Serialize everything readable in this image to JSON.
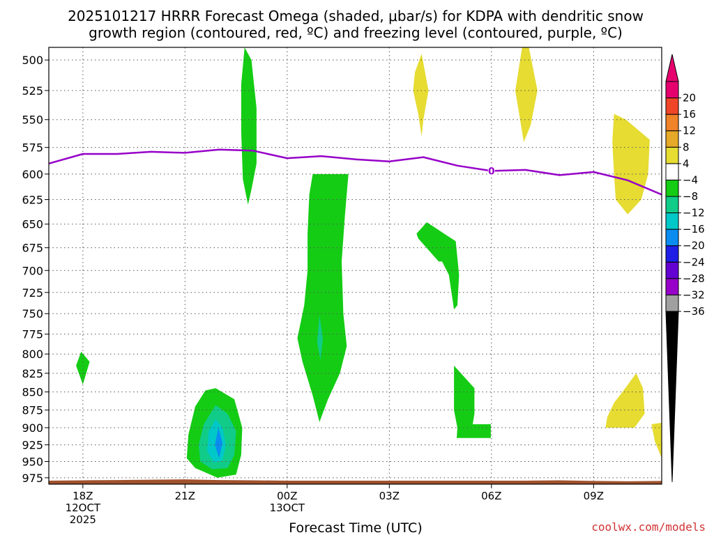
{
  "chart_data": {
    "type": "heatmap",
    "title_lines": [
      "2025101217 HRRR Forecast Omega (shaded, μbar/s) for KDPA with dendritic snow",
      "growth region (contoured, red, ºC) and freezing level (contoured, purple, ºC)"
    ],
    "xlabel": "Forecast Time (UTC)",
    "x_ticks": [
      {
        "hour": 0,
        "lines": [
          "18Z",
          "12OCT",
          "2025"
        ]
      },
      {
        "hour": 3,
        "lines": [
          "21Z"
        ]
      },
      {
        "hour": 6,
        "lines": [
          "00Z",
          "13OCT"
        ]
      },
      {
        "hour": 9,
        "lines": [
          "03Z"
        ]
      },
      {
        "hour": 12,
        "lines": [
          "06Z"
        ]
      },
      {
        "hour": 15,
        "lines": [
          "09Z"
        ]
      }
    ],
    "xlim": [
      -1,
      17
    ],
    "yaxis": "pressure (mb), log scale, inverted",
    "ylim": [
      985,
      490
    ],
    "y_ticks": [
      500,
      525,
      550,
      575,
      600,
      625,
      650,
      675,
      700,
      725,
      750,
      775,
      800,
      825,
      850,
      875,
      900,
      925,
      950,
      975
    ],
    "colorbar": {
      "levels": [
        -36,
        -32,
        -28,
        -24,
        -20,
        -16,
        -12,
        -8,
        -4,
        4,
        8,
        12,
        16,
        20
      ],
      "colors": [
        "#a0a0a0",
        "#9600c8",
        "#6400d2",
        "#1e1ee6",
        "#0a8cf0",
        "#00c8c8",
        "#10cc88",
        "#14cc14",
        "#ffffff",
        "#e6dc32",
        "#e6aa28",
        "#f08228",
        "#f04628",
        "#e6006e"
      ],
      "under_color": "#000000",
      "over_color": "#e6006e"
    },
    "omega_regions": [
      {
        "id": "r1",
        "color": "#14cc14",
        "points": [
          [
            4.75,
            490
          ],
          [
            4.95,
            500
          ],
          [
            5.1,
            540
          ],
          [
            5.1,
            590
          ],
          [
            4.95,
            615
          ],
          [
            4.85,
            630
          ],
          [
            4.7,
            605
          ],
          [
            4.65,
            560
          ],
          [
            4.65,
            520
          ]
        ]
      },
      {
        "id": "r2",
        "color": "#14cc14",
        "points": [
          [
            6.75,
            600
          ],
          [
            7.8,
            600
          ],
          [
            7.7,
            640
          ],
          [
            7.6,
            690
          ],
          [
            7.65,
            750
          ],
          [
            7.75,
            790
          ],
          [
            7.55,
            825
          ],
          [
            7.2,
            860
          ],
          [
            6.95,
            892
          ],
          [
            6.75,
            855
          ],
          [
            6.45,
            810
          ],
          [
            6.3,
            780
          ],
          [
            6.5,
            740
          ],
          [
            6.6,
            700
          ],
          [
            6.6,
            660
          ],
          [
            6.65,
            620
          ]
        ]
      },
      {
        "id": "r3",
        "color": "#10cc88",
        "points": [
          [
            6.95,
            752
          ],
          [
            7.05,
            780
          ],
          [
            6.98,
            808
          ],
          [
            6.88,
            785
          ]
        ]
      },
      {
        "id": "r4",
        "color": "#14cc14",
        "points": [
          [
            9.8,
            660
          ],
          [
            10.1,
            648
          ],
          [
            10.95,
            668
          ],
          [
            11.05,
            705
          ],
          [
            11.0,
            740
          ],
          [
            10.9,
            745
          ],
          [
            10.75,
            705
          ],
          [
            10.55,
            690
          ],
          [
            10.45,
            690
          ],
          [
            9.85,
            665
          ]
        ]
      },
      {
        "id": "r5",
        "color": "#14cc14",
        "points": [
          [
            10.9,
            815
          ],
          [
            11.5,
            845
          ],
          [
            11.5,
            880
          ],
          [
            11.45,
            895
          ],
          [
            11.98,
            895
          ],
          [
            11.98,
            915
          ],
          [
            10.98,
            915
          ],
          [
            11.0,
            900
          ],
          [
            10.9,
            875
          ]
        ]
      },
      {
        "id": "r6",
        "color": "#14cc14",
        "points": [
          [
            -0.05,
            797
          ],
          [
            0.2,
            810
          ],
          [
            0,
            840
          ],
          [
            -0.2,
            815
          ]
        ]
      },
      {
        "id": "r7",
        "color": "#14cc14",
        "points": [
          [
            3.6,
            848
          ],
          [
            3.9,
            845
          ],
          [
            4.45,
            860
          ],
          [
            4.68,
            900
          ],
          [
            4.65,
            940
          ],
          [
            4.5,
            970
          ],
          [
            3.95,
            975
          ],
          [
            3.3,
            960
          ],
          [
            3.05,
            945
          ],
          [
            3.1,
            910
          ],
          [
            3.3,
            870
          ]
        ]
      },
      {
        "id": "r8",
        "color": "#10cc88",
        "points": [
          [
            3.9,
            868
          ],
          [
            4.25,
            880
          ],
          [
            4.5,
            905
          ],
          [
            4.45,
            940
          ],
          [
            4.25,
            960
          ],
          [
            3.8,
            962
          ],
          [
            3.45,
            950
          ],
          [
            3.4,
            925
          ],
          [
            3.55,
            895
          ]
        ]
      },
      {
        "id": "r9",
        "color": "#00c8c8",
        "points": [
          [
            3.9,
            888
          ],
          [
            4.1,
            900
          ],
          [
            4.2,
            925
          ],
          [
            4.1,
            948
          ],
          [
            3.85,
            952
          ],
          [
            3.65,
            935
          ],
          [
            3.7,
            905
          ]
        ]
      },
      {
        "id": "r10",
        "color": "#0a8cf0",
        "points": [
          [
            3.98,
            900
          ],
          [
            4.1,
            922
          ],
          [
            4.0,
            945
          ],
          [
            3.88,
            925
          ]
        ]
      },
      {
        "id": "r11",
        "color": "#e6dc32",
        "points": [
          [
            9.75,
            510
          ],
          [
            9.95,
            495
          ],
          [
            10.15,
            525
          ],
          [
            10.0,
            550
          ],
          [
            9.95,
            565
          ],
          [
            9.85,
            545
          ],
          [
            9.7,
            525
          ]
        ]
      },
      {
        "id": "r12",
        "color": "#e6dc32",
        "points": [
          [
            12.9,
            490
          ],
          [
            13.1,
            490
          ],
          [
            13.35,
            525
          ],
          [
            13.15,
            555
          ],
          [
            12.95,
            570
          ],
          [
            12.7,
            525
          ]
        ]
      },
      {
        "id": "r13",
        "color": "#e6dc32",
        "points": [
          [
            15.6,
            545
          ],
          [
            15.95,
            550
          ],
          [
            16.65,
            568
          ],
          [
            16.6,
            600
          ],
          [
            16.4,
            625
          ],
          [
            16.0,
            640
          ],
          [
            15.65,
            625
          ],
          [
            15.6,
            600
          ],
          [
            15.55,
            570
          ]
        ]
      },
      {
        "id": "r14",
        "color": "#e6dc32",
        "points": [
          [
            15.85,
            850
          ],
          [
            16.25,
            825
          ],
          [
            16.45,
            845
          ],
          [
            16.5,
            880
          ],
          [
            16.2,
            900
          ],
          [
            15.35,
            900
          ],
          [
            15.4,
            885
          ],
          [
            15.6,
            865
          ]
        ]
      },
      {
        "id": "r15",
        "color": "#e6dc32",
        "points": [
          [
            16.7,
            895
          ],
          [
            17,
            893
          ],
          [
            17,
            945
          ],
          [
            16.8,
            920
          ]
        ]
      }
    ],
    "freezing_level": {
      "color": "#9600c8",
      "contour_label": "0",
      "label_hour": 12,
      "points": [
        [
          -1,
          590
        ],
        [
          0,
          581
        ],
        [
          1,
          581
        ],
        [
          2,
          579
        ],
        [
          3,
          580
        ],
        [
          4,
          577
        ],
        [
          5,
          578
        ],
        [
          6,
          585
        ],
        [
          7,
          583
        ],
        [
          8,
          586
        ],
        [
          9,
          588
        ],
        [
          10,
          584
        ],
        [
          11,
          592
        ],
        [
          12,
          597
        ],
        [
          13,
          596
        ],
        [
          14,
          601
        ],
        [
          15,
          598
        ],
        [
          16,
          606
        ],
        [
          17,
          620
        ]
      ]
    },
    "terrain": {
      "color": "#a0522d",
      "bottom": 985,
      "points": [
        [
          -1,
          979.5
        ],
        [
          0,
          979
        ],
        [
          1,
          978.5
        ],
        [
          2,
          978
        ],
        [
          3,
          977.5
        ],
        [
          4,
          978.5
        ],
        [
          5,
          979
        ],
        [
          6,
          979.5
        ],
        [
          7,
          979.5
        ],
        [
          8,
          979.5
        ],
        [
          9,
          979.5
        ],
        [
          10,
          979.5
        ],
        [
          11,
          979.5
        ],
        [
          12,
          979.5
        ],
        [
          13,
          979.5
        ],
        [
          14,
          979
        ],
        [
          15,
          980
        ],
        [
          16,
          980.5
        ],
        [
          17,
          980
        ]
      ]
    }
  },
  "footer": {
    "credit": "coolwx.com/models",
    "credit_color": "#d23232"
  }
}
